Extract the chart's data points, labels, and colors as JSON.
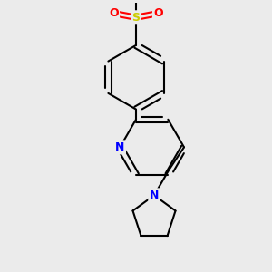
{
  "bg_color": "#ebebeb",
  "bond_color": "#000000",
  "bond_width": 1.5,
  "dbo": 0.055,
  "atom_colors": {
    "N": "#0000ff",
    "O": "#ff0000",
    "S": "#cccc00",
    "C": "#000000"
  },
  "font_size_atom": 9,
  "fig_size": [
    3.0,
    3.0
  ],
  "dpi": 100
}
